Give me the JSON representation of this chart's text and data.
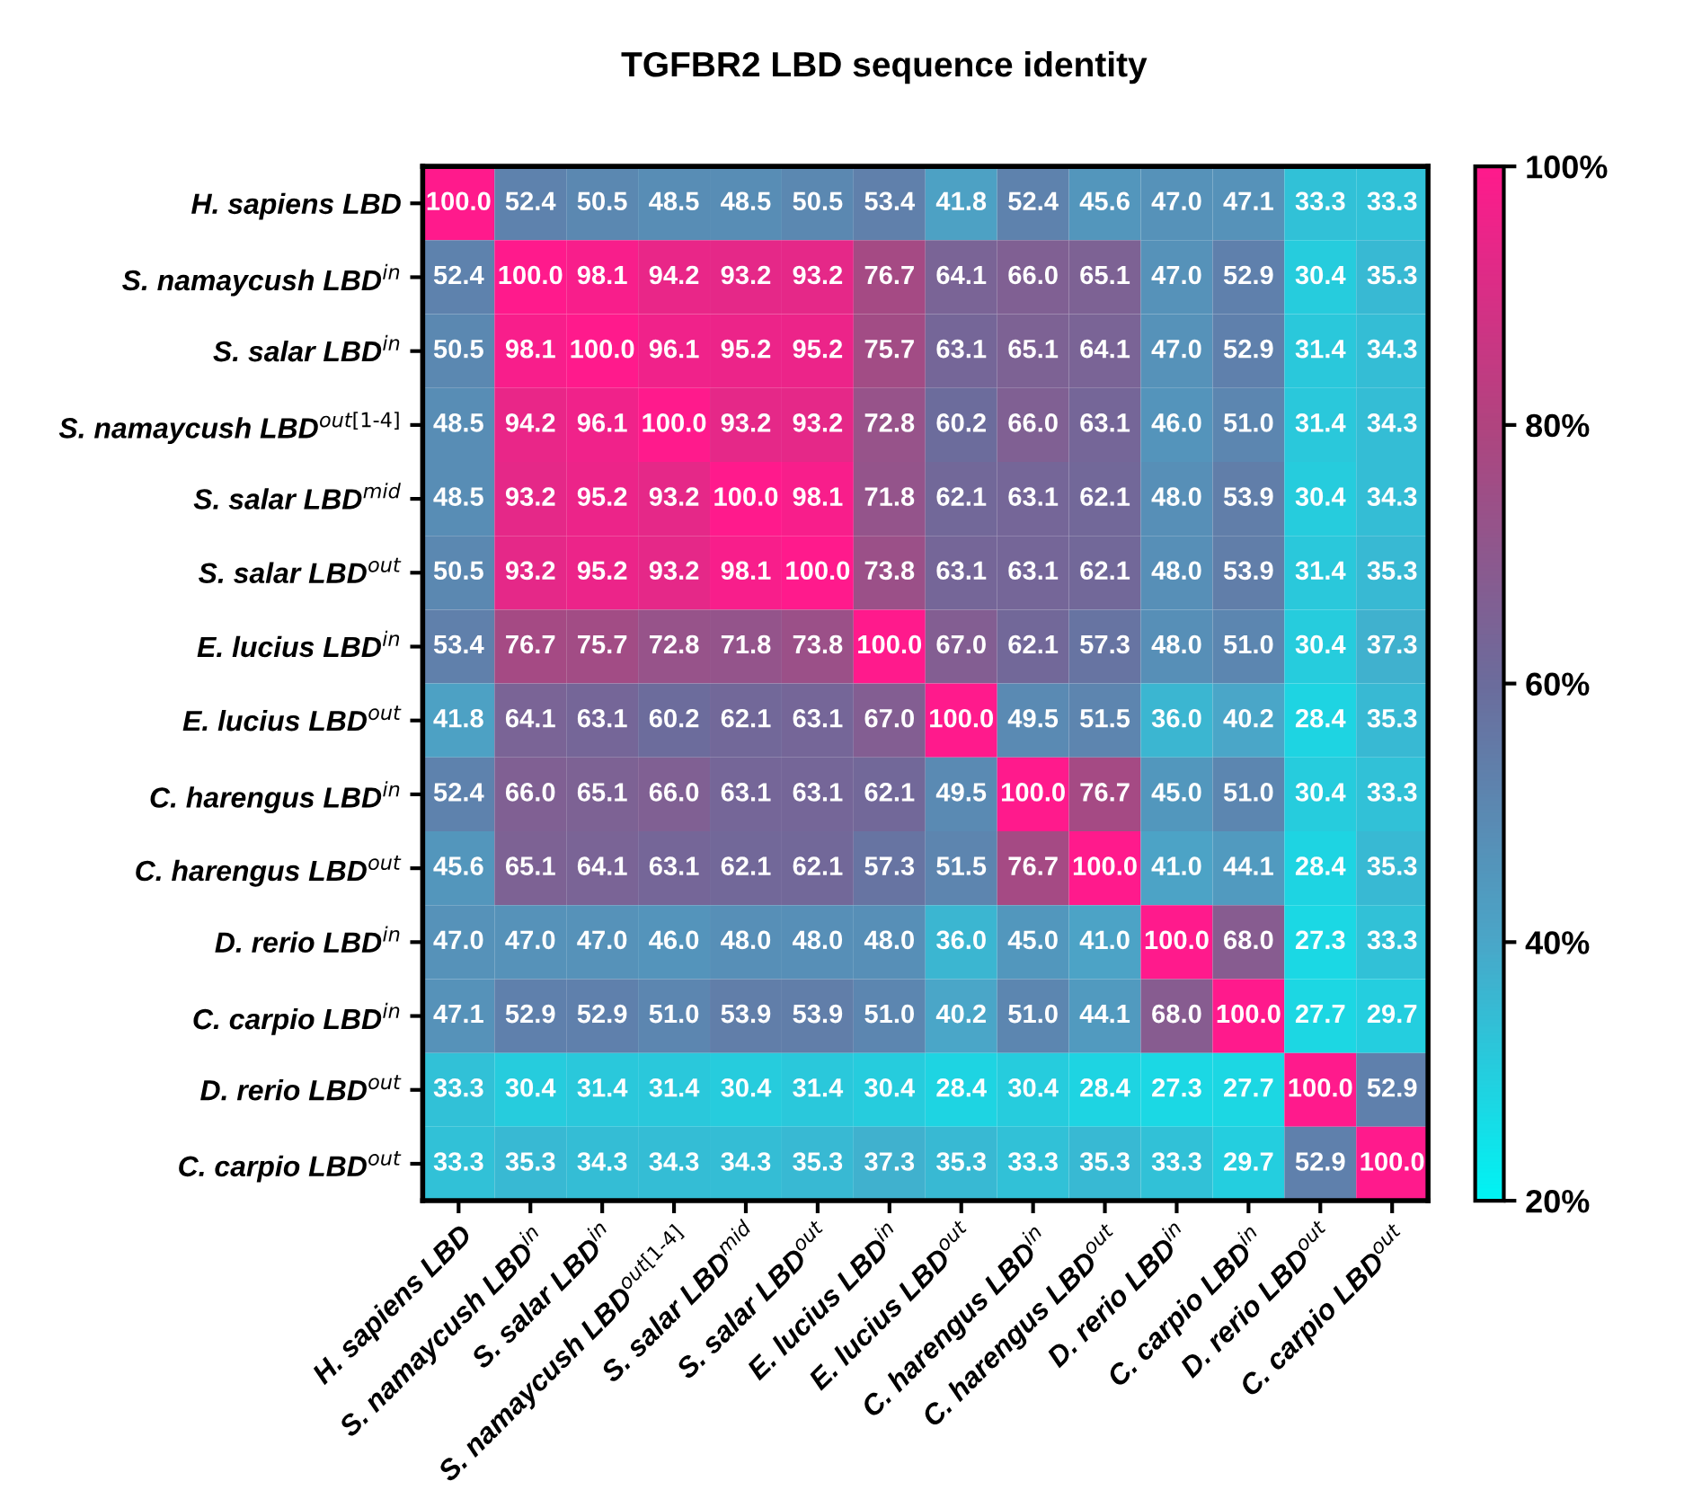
{
  "chart_data": {
    "type": "heatmap",
    "title": "TGFBR2 LBD sequence identity",
    "categories": [
      "H. sapiens LBD",
      "S. namaycush LBD$^{in}$",
      "S. salar LBD$^{in}$",
      "S. namaycush LBD$^{out[1‐4]}$",
      "S. salar LBD$^{mid}$",
      "S. salar LBD$^{out}$",
      "E. lucius LBD$^{in}$",
      "E. lucius LBD$^{out}$",
      "C. harengus LBD$^{in}$",
      "C. harengus LBD$^{out}$",
      "D. rerio LBD$^{in}$",
      "C. carpio LBD$^{in}$",
      "D. rerio LBD$^{out}$",
      "C. carpio LBD$^{out}$"
    ],
    "y_categories": [
      "H. sapiens LBD",
      "S. namaycush LBD$^{in}$",
      "S. salar LBD$^{in}$",
      "S. namaycush LBD$^{out[1‐4]}$",
      "S. salar LBD$^{mid}$",
      "S. salar LBD$^{out}$",
      "E. lucius LBD$^{in}$",
      "E. lucius LBD$^{out}$",
      "C. harengus LBD$^{in}$",
      "C. harengus LBD$^{out}$",
      "D. rerio LBD$^{in}$",
      "C. carpio LBD$^{in}$",
      "D. rerio LBD$^{out}$",
      "C. carpio LBD$^{out}$"
    ],
    "cells": [
      [
        100.0,
        52.4,
        50.5,
        48.5,
        48.5,
        50.5,
        53.4,
        41.8,
        52.4,
        45.6,
        47.0,
        47.1,
        33.3,
        33.3
      ],
      [
        52.4,
        100.0,
        98.1,
        94.2,
        93.2,
        93.2,
        76.7,
        64.1,
        66.0,
        65.1,
        47.0,
        52.9,
        30.4,
        35.3
      ],
      [
        50.5,
        98.1,
        100.0,
        96.1,
        95.2,
        95.2,
        75.7,
        63.1,
        65.1,
        64.1,
        47.0,
        52.9,
        31.4,
        34.3
      ],
      [
        48.5,
        94.2,
        96.1,
        100.0,
        93.2,
        93.2,
        72.8,
        60.2,
        66.0,
        63.1,
        46.0,
        51.0,
        31.4,
        34.3
      ],
      [
        48.5,
        93.2,
        95.2,
        93.2,
        100.0,
        98.1,
        71.8,
        62.1,
        63.1,
        62.1,
        48.0,
        53.9,
        30.4,
        34.3
      ],
      [
        50.5,
        93.2,
        95.2,
        93.2,
        98.1,
        100.0,
        73.8,
        63.1,
        63.1,
        62.1,
        48.0,
        53.9,
        31.4,
        35.3
      ],
      [
        53.4,
        76.7,
        75.7,
        72.8,
        71.8,
        73.8,
        100.0,
        67.0,
        62.1,
        57.3,
        48.0,
        51.0,
        30.4,
        37.3
      ],
      [
        41.8,
        64.1,
        63.1,
        60.2,
        62.1,
        63.1,
        67.0,
        100.0,
        49.5,
        51.5,
        36.0,
        40.2,
        28.4,
        35.3
      ],
      [
        52.4,
        66.0,
        65.1,
        66.0,
        63.1,
        63.1,
        62.1,
        49.5,
        100.0,
        76.7,
        45.0,
        51.0,
        30.4,
        33.3
      ],
      [
        45.6,
        65.1,
        64.1,
        63.1,
        62.1,
        62.1,
        57.3,
        51.5,
        76.7,
        100.0,
        41.0,
        44.1,
        28.4,
        35.3
      ],
      [
        47.0,
        47.0,
        47.0,
        46.0,
        48.0,
        48.0,
        48.0,
        36.0,
        45.0,
        41.0,
        100.0,
        68.0,
        27.3,
        33.3
      ],
      [
        47.1,
        52.9,
        52.9,
        51.0,
        53.9,
        53.9,
        51.0,
        40.2,
        51.0,
        44.1,
        68.0,
        100.0,
        27.7,
        29.7
      ],
      [
        33.3,
        30.4,
        31.4,
        31.4,
        30.4,
        31.4,
        30.4,
        28.4,
        30.4,
        28.4,
        27.3,
        27.7,
        100.0,
        52.9
      ],
      [
        33.3,
        35.3,
        34.3,
        34.3,
        34.3,
        35.3,
        37.3,
        35.3,
        33.3,
        35.3,
        33.3,
        29.7,
        52.9,
        100.0
      ]
    ],
    "cell_labels": [
      [
        "100.0",
        "52.4",
        "50.5",
        "48.5",
        "48.5",
        "50.5",
        "53.4",
        "41.8",
        "52.4",
        "45.6",
        "47.0",
        "47.1",
        "33.3",
        "33.3"
      ],
      [
        "52.4",
        "100.0",
        "98.1",
        "94.2",
        "93.2",
        "93.2",
        "76.7",
        "64.1",
        "66.0",
        "65.1",
        "47.0",
        "52.9",
        "30.4",
        "35.3"
      ],
      [
        "50.5",
        "98.1",
        "100.0",
        "96.1",
        "95.2",
        "95.2",
        "75.7",
        "63.1",
        "65.1",
        "64.1",
        "47.0",
        "52.9",
        "31.4",
        "34.3"
      ],
      [
        "48.5",
        "94.2",
        "96.1",
        "100.0",
        "93.2",
        "93.2",
        "72.8",
        "60.2",
        "66.0",
        "63.1",
        "46.0",
        "51.0",
        "31.4",
        "34.3"
      ],
      [
        "48.5",
        "93.2",
        "95.2",
        "93.2",
        "100.0",
        "98.1",
        "71.8",
        "62.1",
        "63.1",
        "62.1",
        "48.0",
        "53.9",
        "30.4",
        "34.3"
      ],
      [
        "50.5",
        "93.2",
        "95.2",
        "93.2",
        "98.1",
        "100.0",
        "73.8",
        "63.1",
        "63.1",
        "62.1",
        "48.0",
        "53.9",
        "31.4",
        "35.3"
      ],
      [
        "53.4",
        "76.7",
        "75.7",
        "72.8",
        "71.8",
        "73.8",
        "100.0",
        "67.0",
        "62.1",
        "57.3",
        "48.0",
        "51.0",
        "30.4",
        "37.3"
      ],
      [
        "41.8",
        "64.1",
        "63.1",
        "60.2",
        "62.1",
        "63.1",
        "67.0",
        "100.0",
        "49.5",
        "51.5",
        "36.0",
        "40.2",
        "28.4",
        "35.3"
      ],
      [
        "52.4",
        "66.0",
        "65.1",
        "66.0",
        "63.1",
        "63.1",
        "62.1",
        "49.5",
        "100.0",
        "76.7",
        "45.0",
        "51.0",
        "30.4",
        "33.3"
      ],
      [
        "45.6",
        "65.1",
        "64.1",
        "63.1",
        "62.1",
        "62.1",
        "57.3",
        "51.5",
        "76.7",
        "100.0",
        "41.0",
        "44.1",
        "28.4",
        "35.3"
      ],
      [
        "47.0",
        "47.0",
        "47.0",
        "46.0",
        "48.0",
        "48.0",
        "48.0",
        "36.0",
        "45.0",
        "41.0",
        "100.0",
        "68.0",
        "27.3",
        "33.3"
      ],
      [
        "47.1",
        "52.9",
        "52.9",
        "51.0",
        "53.9",
        "53.9",
        "51.0",
        "40.2",
        "51.0",
        "44.1",
        "68.0",
        "100.0",
        "27.7",
        "29.7"
      ],
      [
        "33.3",
        "30.4",
        "31.4",
        "31.4",
        "30.4",
        "31.4",
        "30.4",
        "28.4",
        "30.4",
        "28.4",
        "27.3",
        "27.7",
        "100.0",
        "52.9"
      ],
      [
        "33.3",
        "35.3",
        "34.3",
        "34.3",
        "34.3",
        "35.3",
        "37.3",
        "35.3",
        "33.3",
        "35.3",
        "33.3",
        "29.7",
        "52.9",
        "100.0"
      ]
    ],
    "clim": [
      20,
      100
    ],
    "cticks": [
      {
        "value": 20,
        "label": "20%"
      },
      {
        "value": 40,
        "label": "40%"
      },
      {
        "value": 60,
        "label": "60%"
      },
      {
        "value": 80,
        "label": "80%"
      },
      {
        "value": 100,
        "label": "100%"
      }
    ]
  }
}
